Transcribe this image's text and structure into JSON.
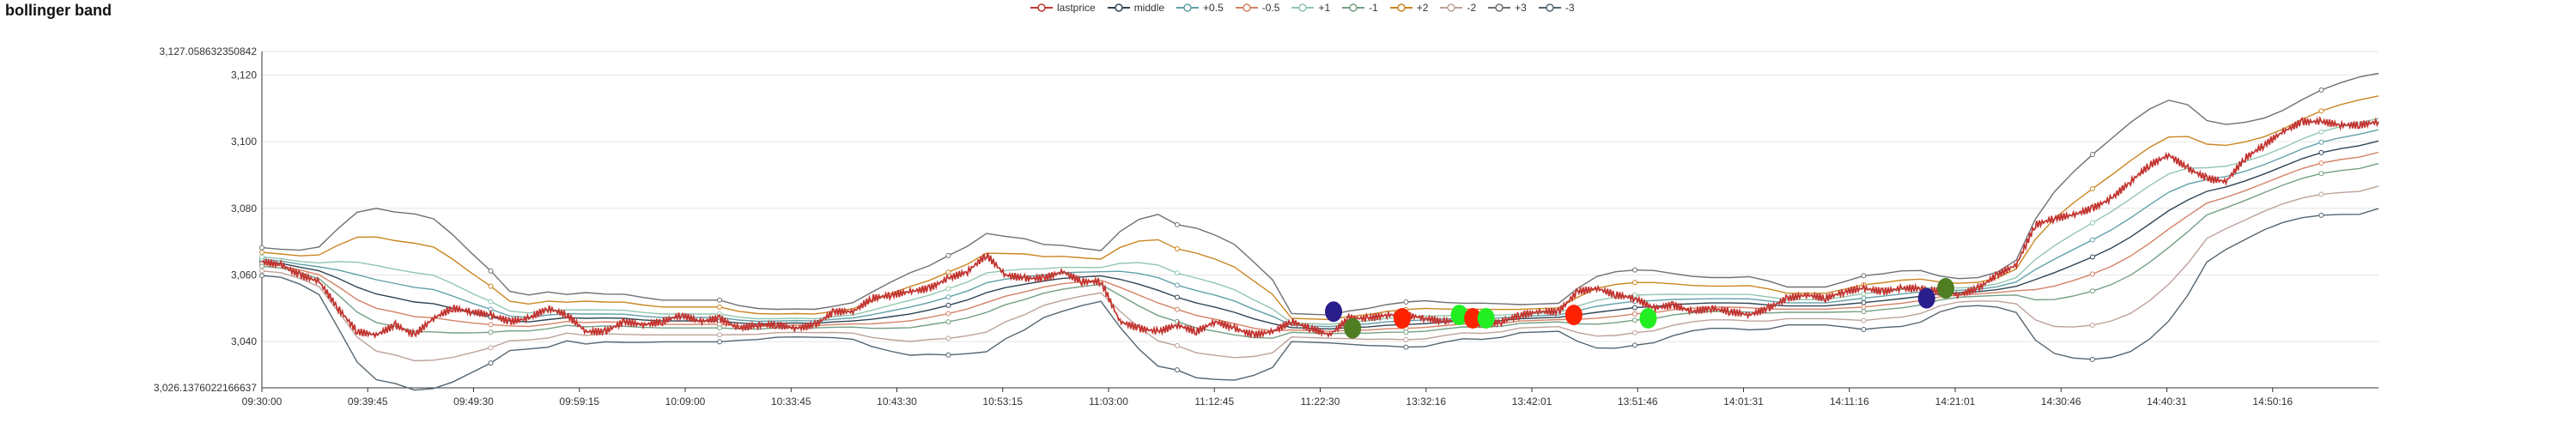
{
  "chart_data": {
    "type": "line",
    "title": "bollinger band",
    "xlabel": "",
    "ylabel": "",
    "ylim": [
      3026.1376022166637,
      3127.058632350842
    ],
    "ylim_labels": [
      "3,026.1376022166637",
      "3,127.058632350842"
    ],
    "y_ticks": [
      3040,
      3060,
      3080,
      3100,
      3120
    ],
    "y_tick_labels": [
      "3,040",
      "3,060",
      "3,080",
      "3,100",
      "3,120"
    ],
    "x_tick_labels": [
      "09:30:00",
      "09:39:45",
      "09:49:30",
      "09:59:15",
      "10:09:00",
      "10:33:45",
      "10:43:30",
      "10:53:15",
      "11:03:00",
      "11:12:45",
      "11:22:30",
      "13:32:16",
      "13:42:01",
      "13:51:46",
      "14:01:31",
      "14:11:16",
      "14:21:01",
      "14:30:46",
      "14:40:31",
      "14:50:16"
    ],
    "grid": "horizontal",
    "legend_position": "top-center",
    "series": [
      {
        "name": "lastprice",
        "color": "#c23531",
        "values": [
          3064,
          3063,
          3060,
          3058,
          3050,
          3043,
          3042,
          3045,
          3042,
          3047,
          3050,
          3049,
          3048,
          3046,
          3047,
          3050,
          3048,
          3043,
          3043,
          3046,
          3045,
          3046,
          3048,
          3046,
          3047,
          3044,
          3045,
          3045,
          3044,
          3045,
          3049,
          3049,
          3053,
          3054,
          3055,
          3056,
          3059,
          3061,
          3066,
          3060,
          3059,
          3059,
          3061,
          3058,
          3058,
          3046,
          3044,
          3043,
          3045,
          3043,
          3046,
          3044,
          3042,
          3043,
          3046,
          3044,
          3042,
          3047,
          3047,
          3048,
          3048,
          3047,
          3046,
          3047,
          3045,
          3046,
          3048,
          3049,
          3049,
          3055,
          3056,
          3054,
          3053,
          3050,
          3051,
          3049,
          3050,
          3049,
          3048,
          3050,
          3053,
          3054,
          3053,
          3055,
          3056,
          3055,
          3056,
          3056,
          3055,
          3054,
          3056,
          3060,
          3063,
          3075,
          3077,
          3078,
          3080,
          3083,
          3088,
          3093,
          3096,
          3092,
          3089,
          3088,
          3095,
          3099,
          3103,
          3106,
          3106,
          3105,
          3105,
          3106
        ]
      },
      {
        "name": "middle",
        "color": "#2f4554",
        "values": []
      },
      {
        "name": "+0.5",
        "color": "#61a0a8",
        "values": []
      },
      {
        "name": "-0.5",
        "color": "#d48265",
        "values": []
      },
      {
        "name": "+1",
        "color": "#91c7ae",
        "values": []
      },
      {
        "name": "-1",
        "color": "#749f83",
        "values": []
      },
      {
        "name": "+2",
        "color": "#ca8622",
        "values": []
      },
      {
        "name": "-2",
        "color": "#bda29a",
        "values": []
      },
      {
        "name": "+3",
        "color": "#6e7074",
        "values": []
      },
      {
        "name": "-3",
        "color": "#546570",
        "values": []
      }
    ],
    "signals": [
      {
        "x_index": 56.2,
        "value": 3049,
        "color": "#2a1e8c"
      },
      {
        "x_index": 57.2,
        "value": 3044,
        "color": "#4e7d22"
      },
      {
        "x_index": 59.8,
        "value": 3047,
        "color": "#ff2200"
      },
      {
        "x_index": 62.8,
        "value": 3048,
        "color": "#22ee22"
      },
      {
        "x_index": 63.5,
        "value": 3047,
        "color": "#ff2200"
      },
      {
        "x_index": 64.2,
        "value": 3047,
        "color": "#22ee22"
      },
      {
        "x_index": 68.8,
        "value": 3048,
        "color": "#ff2200"
      },
      {
        "x_index": 72.7,
        "value": 3047,
        "color": "#22ee22"
      },
      {
        "x_index": 87.3,
        "value": 3053,
        "color": "#2a1e8c"
      },
      {
        "x_index": 88.3,
        "value": 3056,
        "color": "#4e7d22"
      }
    ]
  }
}
